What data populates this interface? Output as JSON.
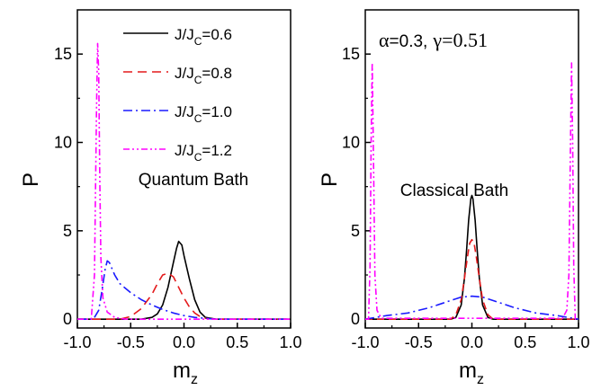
{
  "chart_data": [
    {
      "type": "line",
      "panel": "left",
      "xlabel": "m",
      "xlabel_sub": "z",
      "ylabel": "P",
      "xlim": [
        -1.0,
        1.0
      ],
      "ylim": [
        -0.5,
        17.5
      ],
      "xticks": [
        "-1.0",
        "-0.5",
        "0.0",
        "0.5",
        "1.0"
      ],
      "yticks": [
        "0",
        "5",
        "10",
        "15"
      ],
      "annotation": "Quantum Bath",
      "legend_position": "top-right",
      "series": [
        {
          "name": "J/J_C=0.6",
          "label_main": "J/J",
          "label_sub": "C",
          "label_tail": "=0.6",
          "color": "#000000",
          "dash": "solid",
          "x": [
            -1.0,
            -0.4,
            -0.3,
            -0.25,
            -0.2,
            -0.15,
            -0.1,
            -0.07,
            -0.05,
            -0.02,
            0.0,
            0.05,
            0.1,
            0.15,
            0.2,
            0.3,
            1.0
          ],
          "y": [
            0.0,
            0.0,
            0.1,
            0.3,
            0.8,
            1.8,
            3.2,
            4.0,
            4.4,
            4.2,
            3.6,
            2.3,
            1.1,
            0.4,
            0.1,
            0.0,
            0.0
          ]
        },
        {
          "name": "J/J_C=0.8",
          "label_main": "J/J",
          "label_sub": "C",
          "label_tail": "=0.8",
          "color": "#e41a1c",
          "dash": "10,6",
          "x": [
            -1.0,
            -0.6,
            -0.5,
            -0.4,
            -0.3,
            -0.25,
            -0.2,
            -0.15,
            -0.1,
            -0.05,
            0.0,
            0.05,
            0.1,
            0.15,
            0.2,
            0.3,
            1.0
          ],
          "y": [
            0.0,
            0.0,
            0.15,
            0.6,
            1.4,
            2.0,
            2.5,
            2.6,
            2.4,
            1.8,
            1.2,
            0.7,
            0.35,
            0.15,
            0.05,
            0.0,
            0.0
          ]
        },
        {
          "name": "J/J_C=1.0",
          "label_main": "J/J",
          "label_sub": "C",
          "label_tail": "=1.0",
          "color": "#1a1aff",
          "dash": "10,4,2,4",
          "x": [
            -1.0,
            -0.85,
            -0.8,
            -0.77,
            -0.74,
            -0.72,
            -0.7,
            -0.65,
            -0.6,
            -0.5,
            -0.4,
            -0.3,
            -0.2,
            -0.1,
            0.0,
            0.1,
            0.3,
            1.0
          ],
          "y": [
            0.0,
            0.0,
            0.5,
            1.6,
            2.8,
            3.3,
            3.2,
            2.5,
            2.0,
            1.5,
            1.1,
            0.8,
            0.55,
            0.35,
            0.2,
            0.1,
            0.0,
            0.0
          ]
        },
        {
          "name": "J/J_C=1.2",
          "label_main": "J/J",
          "label_sub": "C",
          "label_tail": "=1.2",
          "color": "#ff00ff",
          "dash": "7,3,2,3,2,3",
          "x": [
            -1.0,
            -0.87,
            -0.84,
            -0.82,
            -0.81,
            -0.8,
            -0.79,
            -0.78,
            -0.76,
            -0.72,
            -0.65,
            -0.55,
            -0.45,
            1.0
          ],
          "y": [
            0.0,
            0.0,
            2.5,
            12.0,
            15.6,
            14.0,
            8.0,
            3.5,
            1.2,
            0.4,
            0.1,
            0.0,
            0.0,
            0.0
          ]
        }
      ]
    },
    {
      "type": "line",
      "panel": "right",
      "xlabel": "m",
      "xlabel_sub": "z",
      "ylabel": "P",
      "xlim": [
        -1.0,
        1.0
      ],
      "ylim": [
        -0.5,
        17.5
      ],
      "xticks": [
        "-1.0",
        "-0.5",
        "0.0",
        "0.5",
        "1.0"
      ],
      "yticks": [
        "0",
        "5",
        "10",
        "15"
      ],
      "annotation": "Classical Bath",
      "params": {
        "alpha_symbol": "α",
        "alpha_text": "=0.3,",
        "gamma_symbol": "γ",
        "gamma_text": "=0.51"
      },
      "series": [
        {
          "name": "J/J_C=0.6",
          "color": "#000000",
          "dash": "solid",
          "x": [
            -1.0,
            -0.2,
            -0.15,
            -0.1,
            -0.07,
            -0.05,
            -0.03,
            -0.01,
            0.0,
            0.01,
            0.03,
            0.05,
            0.07,
            0.1,
            0.15,
            0.2,
            1.0
          ],
          "y": [
            0.0,
            0.0,
            0.1,
            0.8,
            2.3,
            3.9,
            5.6,
            6.8,
            7.0,
            6.8,
            5.6,
            3.9,
            2.3,
            0.8,
            0.1,
            0.0,
            0.0
          ]
        },
        {
          "name": "J/J_C=0.8",
          "color": "#e41a1c",
          "dash": "8,5",
          "x": [
            -1.0,
            -0.2,
            -0.15,
            -0.1,
            -0.07,
            -0.04,
            -0.02,
            0.0,
            0.02,
            0.04,
            0.07,
            0.1,
            0.15,
            0.2,
            1.0
          ],
          "y": [
            0.0,
            0.0,
            0.25,
            1.1,
            2.3,
            3.6,
            4.3,
            4.5,
            4.3,
            3.6,
            2.3,
            1.1,
            0.25,
            0.0,
            0.0
          ]
        },
        {
          "name": "J/J_C=1.0",
          "color": "#1a1aff",
          "dash": "10,4,2,4",
          "x": [
            -1.0,
            -0.9,
            -0.8,
            -0.6,
            -0.4,
            -0.2,
            -0.1,
            0.0,
            0.1,
            0.2,
            0.4,
            0.6,
            0.8,
            0.9,
            1.0
          ],
          "y": [
            0.0,
            0.1,
            0.2,
            0.35,
            0.65,
            1.05,
            1.25,
            1.3,
            1.25,
            1.05,
            0.65,
            0.35,
            0.2,
            0.1,
            0.0
          ]
        },
        {
          "name": "J/J_C=1.2",
          "color": "#ff00ff",
          "dash": "7,3,2,3,2,3",
          "x": [
            -1.0,
            -0.97,
            -0.955,
            -0.945,
            -0.935,
            -0.925,
            -0.91,
            -0.89,
            -0.85,
            0.85,
            0.89,
            0.91,
            0.925,
            0.935,
            0.945,
            0.955,
            0.97,
            1.0
          ],
          "y": [
            0.0,
            0.0,
            3.0,
            10.0,
            14.5,
            10.0,
            2.5,
            0.5,
            0.05,
            0.05,
            0.5,
            2.5,
            10.0,
            14.5,
            10.0,
            3.0,
            0.0,
            0.0
          ]
        }
      ]
    }
  ]
}
